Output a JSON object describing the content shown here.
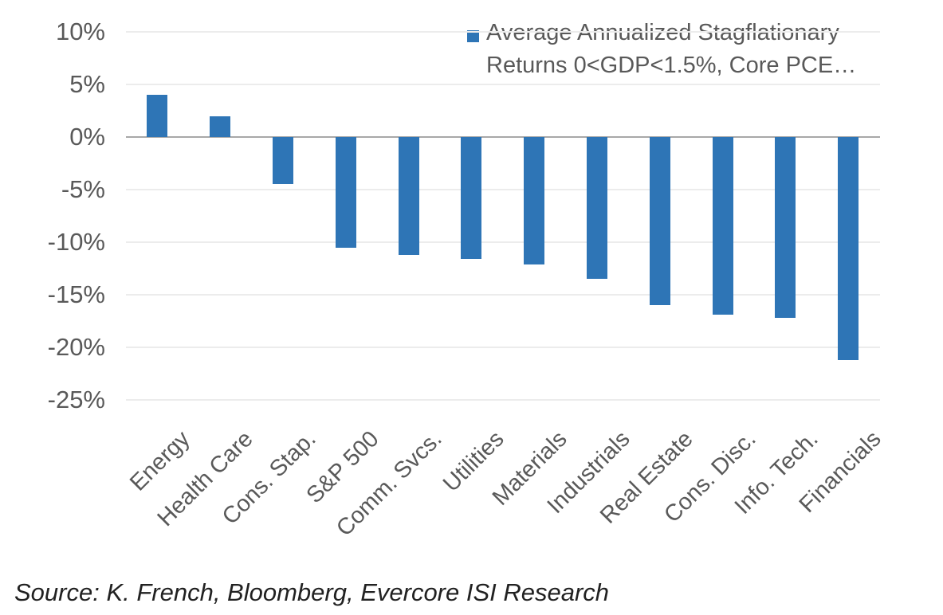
{
  "chart_data": {
    "type": "bar",
    "title": "",
    "categories": [
      "Energy",
      "Health Care",
      "Cons. Stap.",
      "S&P 500",
      "Comm. Svcs.",
      "Utilities",
      "Materials",
      "Industrials",
      "Real Estate",
      "Cons. Disc.",
      "Info. Tech.",
      "Financials"
    ],
    "values": [
      4.0,
      2.0,
      -4.5,
      -10.5,
      -11.2,
      -11.6,
      -12.1,
      -13.5,
      -16.0,
      -16.9,
      -17.2,
      -21.2
    ],
    "series_name": "Average Annualized Stagflationary Returns 0<GDP<1.5%, Core PCE…",
    "xlabel": "",
    "ylabel": "",
    "ylim": [
      -25,
      10
    ],
    "yticks": [
      10,
      5,
      0,
      -5,
      -10,
      -15,
      -20,
      -25
    ],
    "ytick_suffix": "%",
    "grid": true,
    "legend_position": "top-right",
    "bar_color": "#2E75B6"
  },
  "legend": {
    "lines": [
      "Average Annualized Stagflationary",
      "Returns 0<GDP<1.5%, Core PCE…"
    ]
  },
  "source_note": "Source: K. French, Bloomberg, Evercore ISI Research",
  "colors": {
    "bar": "#2E75B6",
    "gridline": "#ECECEC",
    "zero_line": "#A8A8A8",
    "axis_text": "#595959",
    "source_text": "#212121",
    "background": "#FFFFFF"
  }
}
